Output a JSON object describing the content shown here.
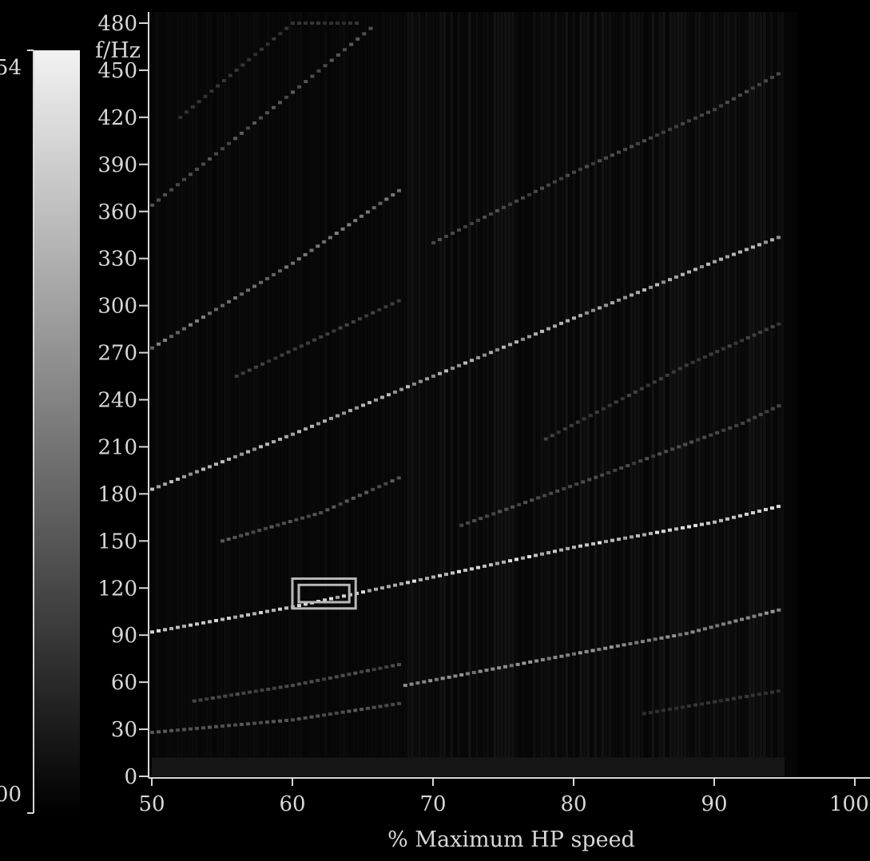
{
  "chart_data": {
    "type": "heatmap",
    "title": "",
    "xlabel": "% Maximum HP speed",
    "ylabel": "f/Hz",
    "xlim": [
      50,
      100
    ],
    "ylim": [
      0,
      480
    ],
    "data_x_extent": [
      50,
      95
    ],
    "xticks": [
      50,
      60,
      70,
      80,
      90,
      100
    ],
    "yticks": [
      0,
      30,
      60,
      90,
      120,
      150,
      180,
      210,
      240,
      270,
      300,
      330,
      360,
      390,
      420,
      450,
      480
    ],
    "colorbar": {
      "colormap": "grayscale",
      "min_label": "00",
      "max_label": "54",
      "low_color": "#000000",
      "high_color": "#f2f2f2"
    },
    "harmonic_lines": [
      {
        "name": "",
        "x": [
          50,
          60,
          70,
          80,
          90,
          95
        ],
        "y": [
          92,
          108,
          127,
          146,
          162,
          173
        ],
        "intensity": 0.85
      },
      {
        "name": "",
        "x": [
          50,
          60,
          70,
          80,
          90,
          95
        ],
        "y": [
          183,
          218,
          255,
          292,
          328,
          345
        ],
        "intensity": 0.7
      },
      {
        "name": "",
        "x": [
          50,
          60,
          68
        ],
        "y": [
          273,
          327,
          376
        ],
        "intensity": 0.45
      },
      {
        "name": "",
        "x": [
          50,
          60,
          66
        ],
        "y": [
          364,
          436,
          480
        ],
        "intensity": 0.3
      },
      {
        "name": "",
        "x": [
          52,
          60,
          65
        ],
        "y": [
          420,
          480,
          480
        ],
        "intensity": 0.15
      },
      {
        "name": "",
        "x": [
          50,
          60,
          68
        ],
        "y": [
          28,
          36,
          47
        ],
        "intensity": 0.3
      },
      {
        "name": "",
        "x": [
          53,
          60,
          68
        ],
        "y": [
          48,
          58,
          72
        ],
        "intensity": 0.25
      },
      {
        "name": "",
        "x": [
          68,
          80,
          88,
          95
        ],
        "y": [
          58,
          78,
          91,
          107
        ],
        "intensity": 0.55
      },
      {
        "name": "",
        "x": [
          55,
          62,
          68
        ],
        "y": [
          150,
          168,
          192
        ],
        "intensity": 0.3
      },
      {
        "name": "",
        "x": [
          56,
          62,
          68
        ],
        "y": [
          255,
          280,
          305
        ],
        "intensity": 0.2
      },
      {
        "name": "",
        "x": [
          70,
          80,
          90,
          95
        ],
        "y": [
          340,
          385,
          425,
          450
        ],
        "intensity": 0.25
      },
      {
        "name": "",
        "x": [
          72,
          82,
          92,
          95
        ],
        "y": [
          160,
          192,
          225,
          238
        ],
        "intensity": 0.25
      },
      {
        "name": "",
        "x": [
          78,
          88,
          95
        ],
        "y": [
          215,
          262,
          290
        ],
        "intensity": 0.2
      },
      {
        "name": "",
        "x": [
          85,
          95
        ],
        "y": [
          40,
          55
        ],
        "intensity": 0.15
      }
    ],
    "highlight_box": {
      "x": [
        60,
        64.5
      ],
      "y": [
        107,
        126
      ],
      "inner_y": [
        111,
        122
      ]
    },
    "grid": false,
    "legend": "none"
  }
}
